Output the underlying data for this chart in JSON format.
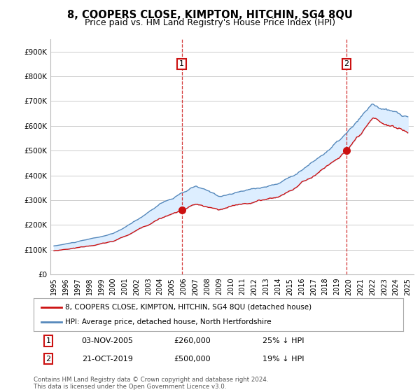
{
  "title": "8, COOPERS CLOSE, KIMPTON, HITCHIN, SG4 8QU",
  "subtitle": "Price paid vs. HM Land Registry's House Price Index (HPI)",
  "title_fontsize": 10.5,
  "subtitle_fontsize": 9,
  "background_color": "#ffffff",
  "plot_bg_color": "#ffffff",
  "grid_color": "#cccccc",
  "hpi_color": "#5588bb",
  "hpi_fill_color": "#ddeeff",
  "price_color": "#cc1111",
  "dashed_color": "#cc1111",
  "ylim": [
    0,
    950000
  ],
  "yticks": [
    0,
    100000,
    200000,
    300000,
    400000,
    500000,
    600000,
    700000,
    800000,
    900000
  ],
  "ytick_labels": [
    "£0",
    "£100K",
    "£200K",
    "£300K",
    "£400K",
    "£500K",
    "£600K",
    "£700K",
    "£800K",
    "£900K"
  ],
  "sale1_year": 2005.84,
  "sale1_price": 260000,
  "sale1_label": "1",
  "sale1_date": "03-NOV-2005",
  "sale1_pct": "25% ↓ HPI",
  "sale2_year": 2019.8,
  "sale2_price": 500000,
  "sale2_label": "2",
  "sale2_date": "21-OCT-2019",
  "sale2_pct": "19% ↓ HPI",
  "legend_line1": "8, COOPERS CLOSE, KIMPTON, HITCHIN, SG4 8QU (detached house)",
  "legend_line2": "HPI: Average price, detached house, North Hertfordshire",
  "footer": "Contains HM Land Registry data © Crown copyright and database right 2024.\nThis data is licensed under the Open Government Licence v3.0.",
  "xstart": 1995,
  "xend": 2025
}
